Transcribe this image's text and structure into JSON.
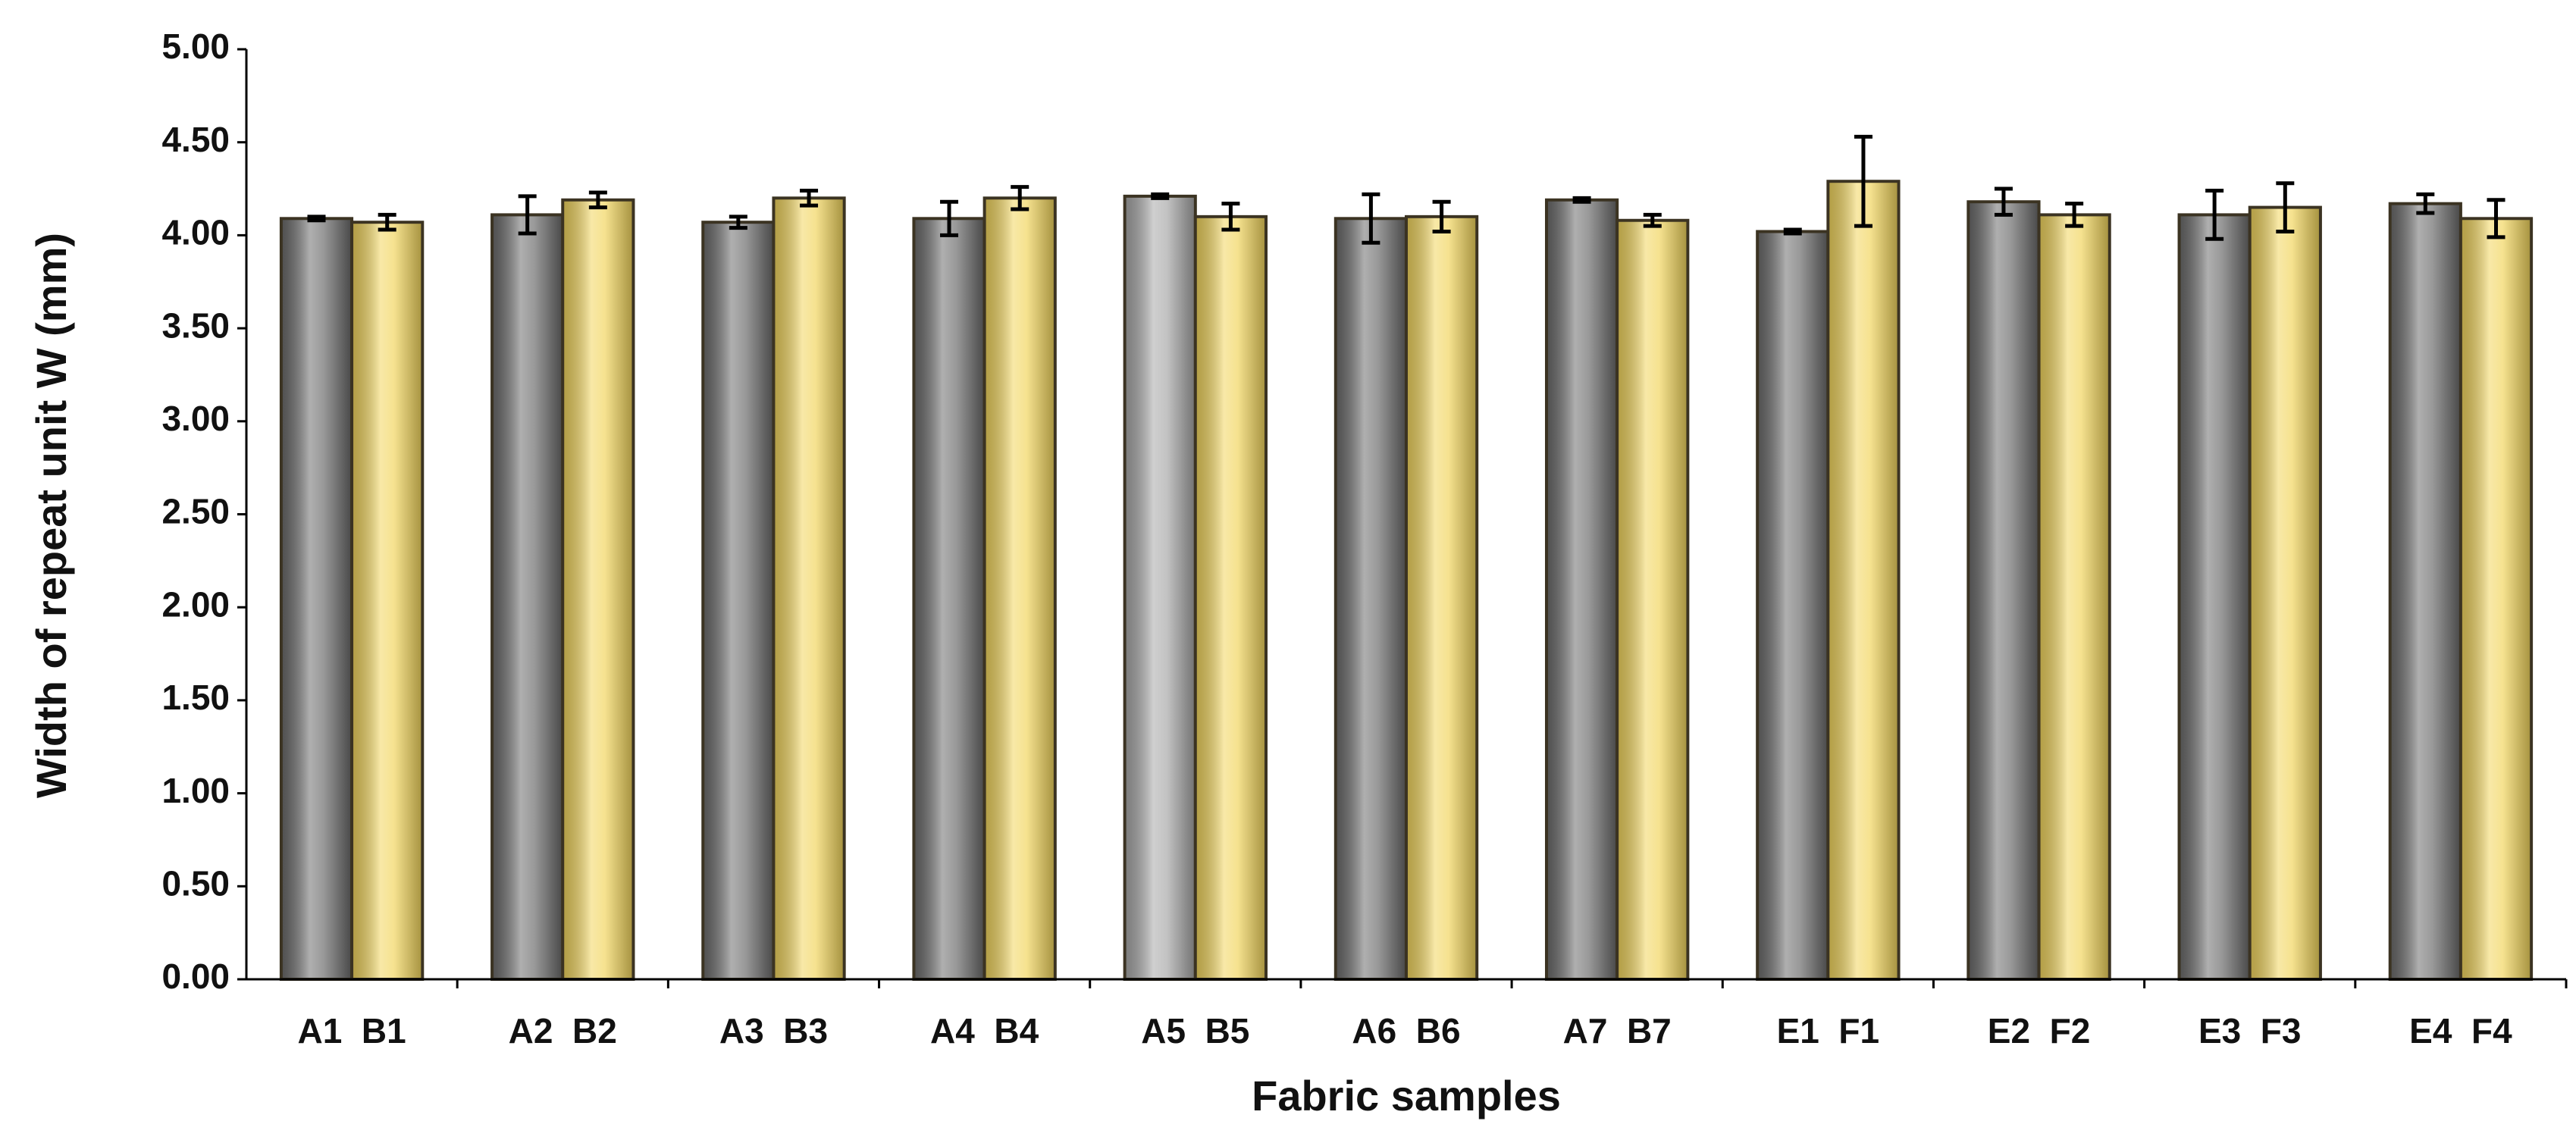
{
  "chart_data": {
    "type": "bar",
    "x_label": "Fabric samples",
    "y_label": "Width of repeat unit W (mm)",
    "categories": [
      "A1  B1",
      "A2  B2",
      "A3  B3",
      "A4  B4",
      "A5  B5",
      "A6  B6",
      "A7  B7",
      "E1  F1",
      "E2  F2",
      "E3  F3",
      "E4  F4"
    ],
    "series": [
      {
        "color": "#6e6e6e",
        "colors": [
          "#6e6e6e",
          "#6e6e6e",
          "#6e6e6e",
          "#6e6e6e",
          "#a9a9a9",
          "#6e6e6e",
          "#6e6e6e",
          "#6e6e6e",
          "#6e6e6e",
          "#6e6e6e",
          "#6e6e6e"
        ],
        "values": [
          4.09,
          4.11,
          4.07,
          4.09,
          4.21,
          4.09,
          4.19,
          4.02,
          4.18,
          4.11,
          4.17
        ],
        "errors": [
          0.01,
          0.1,
          0.03,
          0.09,
          0.01,
          0.13,
          0.01,
          0.01,
          0.07,
          0.13,
          0.05
        ]
      },
      {
        "color": "#f2d660",
        "values": [
          4.07,
          4.19,
          4.2,
          4.2,
          4.1,
          4.1,
          4.08,
          4.29,
          4.11,
          4.15,
          4.09
        ],
        "errors": [
          0.04,
          0.04,
          0.04,
          0.06,
          0.07,
          0.08,
          0.03,
          0.24,
          0.06,
          0.13,
          0.1
        ]
      }
    ],
    "ylim": [
      0,
      5
    ],
    "yticks": [
      {
        "value": 0,
        "label": "0.00"
      },
      {
        "value": 0.5,
        "label": "0.50"
      },
      {
        "value": 1,
        "label": "1.00"
      },
      {
        "value": 1.5,
        "label": "1.50"
      },
      {
        "value": 2,
        "label": "2.00"
      },
      {
        "value": 2.5,
        "label": "2.50"
      },
      {
        "value": 3,
        "label": "3.00"
      },
      {
        "value": 3.5,
        "label": "3.50"
      },
      {
        "value": 4,
        "label": "4.00"
      },
      {
        "value": 4.5,
        "label": "4.50"
      },
      {
        "value": 5,
        "label": "5.00"
      }
    ],
    "grid": false
  }
}
